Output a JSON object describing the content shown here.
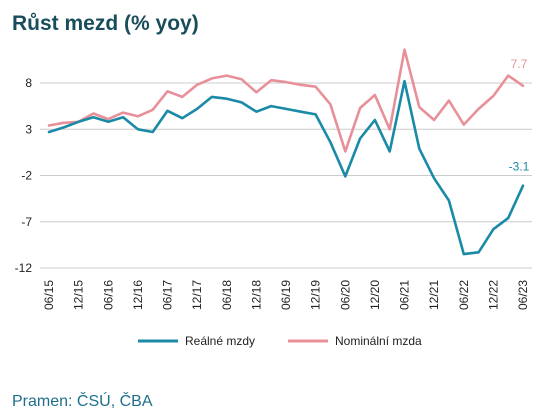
{
  "title": "Růst mezd (% yoy)",
  "source": "Pramen: ČSÚ, ČBA",
  "chart_data": {
    "type": "line",
    "title": "Růst mezd (% yoy)",
    "x": [
      "06/15",
      "09/15",
      "12/15",
      "03/16",
      "06/16",
      "09/16",
      "12/16",
      "03/17",
      "06/17",
      "09/17",
      "12/17",
      "03/18",
      "06/18",
      "09/18",
      "12/18",
      "03/19",
      "06/19",
      "09/19",
      "12/19",
      "03/20",
      "06/20",
      "09/20",
      "12/20",
      "03/21",
      "06/21",
      "09/21",
      "12/21",
      "03/22",
      "06/22",
      "09/22",
      "12/22",
      "03/23",
      "06/23"
    ],
    "x_tick_labels": [
      "06/15",
      "12/15",
      "06/16",
      "12/16",
      "06/17",
      "12/17",
      "06/18",
      "12/18",
      "06/19",
      "12/19",
      "06/20",
      "12/20",
      "06/21",
      "12/21",
      "06/22",
      "12/22",
      "06/23"
    ],
    "yticks": [
      8,
      3,
      -2,
      -7,
      -12
    ],
    "ylim": [
      -12,
      12
    ],
    "grid": "horizontal",
    "legend_position": "bottom",
    "series": [
      {
        "name": "Reálné mzdy",
        "color": "#1a8aa6",
        "end_label": "-3.1",
        "values": [
          2.7,
          3.2,
          3.8,
          4.3,
          3.8,
          4.3,
          3.0,
          2.7,
          5.0,
          4.2,
          5.2,
          6.5,
          6.3,
          5.9,
          4.9,
          5.5,
          5.2,
          4.9,
          4.6,
          1.6,
          -2.1,
          2.0,
          4.0,
          0.6,
          8.2,
          0.9,
          -2.3,
          -4.7,
          -10.5,
          -10.3,
          -7.8,
          -6.6,
          -3.1
        ]
      },
      {
        "name": "Nominální mzda",
        "color": "#e8909a",
        "end_label": "7.7",
        "values": [
          3.4,
          3.7,
          3.8,
          4.7,
          4.1,
          4.8,
          4.4,
          5.1,
          7.1,
          6.5,
          7.8,
          8.5,
          8.8,
          8.4,
          7.0,
          8.3,
          8.1,
          7.8,
          7.6,
          5.7,
          0.6,
          5.3,
          6.7,
          3.0,
          11.6,
          5.4,
          4.0,
          6.1,
          3.5,
          5.2,
          6.6,
          8.8,
          7.7
        ]
      }
    ]
  }
}
